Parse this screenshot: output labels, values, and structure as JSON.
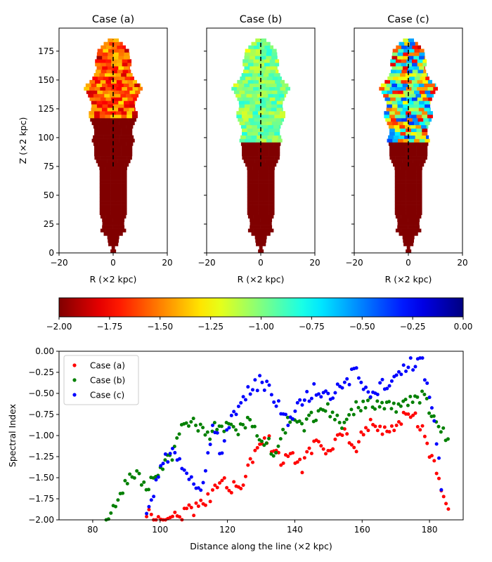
{
  "chart_data": [
    {
      "type": "heatmap",
      "panels": [
        {
          "title": "Case (a)",
          "upper_color_range": [
            -1.3,
            -1.85
          ],
          "threshold_z": 116
        },
        {
          "title": "Case (b)",
          "upper_color_range": [
            -0.8,
            -1.15
          ],
          "threshold_z": 96
        },
        {
          "title": "Case (c)",
          "upper_color_range": [
            -0.35,
            -1.8
          ],
          "threshold_z": 96
        }
      ],
      "shared": {
        "xlabel": "R (×2 kpc)",
        "ylabel": "Z (×2 kpc)",
        "xlim": [
          -20,
          20
        ],
        "ylim": [
          0,
          195
        ],
        "xticks": [
          "−20",
          "0",
          "20"
        ],
        "yticks": [
          "0",
          "25",
          "50",
          "75",
          "100",
          "125",
          "150",
          "175"
        ],
        "dashed_line": {
          "r": 0,
          "z_from": 75,
          "z_to": 185,
          "color": "#000000"
        },
        "lower_region_color": "#800000"
      },
      "profile_half_widths": [
        [
          0,
          2
        ],
        [
          3,
          0
        ],
        [
          8,
          2
        ],
        [
          13,
          2
        ],
        [
          16,
          3
        ],
        [
          18,
          5
        ],
        [
          23,
          4
        ],
        [
          28,
          4
        ],
        [
          33,
          5
        ],
        [
          38,
          5
        ],
        [
          43,
          5
        ],
        [
          48,
          5
        ],
        [
          53,
          5
        ],
        [
          58,
          5
        ],
        [
          63,
          5
        ],
        [
          68,
          5
        ],
        [
          73,
          5
        ],
        [
          78,
          6
        ],
        [
          83,
          7
        ],
        [
          88,
          7
        ],
        [
          93,
          7
        ],
        [
          98,
          8
        ],
        [
          103,
          7
        ],
        [
          108,
          7
        ],
        [
          113,
          8
        ],
        [
          118,
          9
        ],
        [
          122,
          9
        ],
        [
          125,
          8
        ],
        [
          130,
          8
        ],
        [
          135,
          9
        ],
        [
          140,
          10
        ],
        [
          143,
          11
        ],
        [
          146,
          10
        ],
        [
          150,
          8
        ],
        [
          155,
          7
        ],
        [
          160,
          6
        ],
        [
          165,
          7
        ],
        [
          170,
          6
        ],
        [
          175,
          6
        ],
        [
          180,
          4
        ],
        [
          183,
          3
        ],
        [
          186,
          1
        ]
      ]
    },
    {
      "type": "colorbar",
      "colormap": "jet_r",
      "range": [
        -2.0,
        0.0
      ],
      "tick_labels": [
        "−2.00",
        "−1.75",
        "−1.50",
        "−1.25",
        "−1.00",
        "−0.75",
        "−0.50",
        "−0.25",
        "0.00"
      ],
      "tick_values": [
        -2.0,
        -1.75,
        -1.5,
        -1.25,
        -1.0,
        -0.75,
        -0.5,
        -0.25,
        0.0
      ]
    },
    {
      "type": "scatter",
      "xlabel": "Distance along the line (×2 kpc)",
      "ylabel": "Spectral Index",
      "xlim": [
        70,
        190
      ],
      "ylim": [
        -2.0,
        0.0
      ],
      "xticks": [
        "80",
        "100",
        "120",
        "140",
        "160",
        "180"
      ],
      "xtick_values": [
        80,
        100,
        120,
        140,
        160,
        180
      ],
      "yticks": [
        "−2.00",
        "−1.75",
        "−1.50",
        "−1.25",
        "−1.00",
        "−0.75",
        "−0.50",
        "−0.25",
        "0.00"
      ],
      "ytick_values": [
        -2.0,
        -1.75,
        -1.5,
        -1.25,
        -1.0,
        -0.75,
        -0.5,
        -0.25,
        0.0
      ],
      "legend_placement": "top-left",
      "series": [
        {
          "name": "Case (a)",
          "color": "#ff0000",
          "keypoints": [
            [
              96,
              -1.9
            ],
            [
              100,
              -2.0
            ],
            [
              112,
              -1.85
            ],
            [
              118,
              -1.55
            ],
            [
              124,
              -1.65
            ],
            [
              128,
              -1.2
            ],
            [
              132,
              -1.05
            ],
            [
              136,
              -1.3
            ],
            [
              140,
              -1.25
            ],
            [
              142,
              -1.4
            ],
            [
              146,
              -1.05
            ],
            [
              150,
              -1.25
            ],
            [
              154,
              -0.95
            ],
            [
              158,
              -1.15
            ],
            [
              162,
              -0.85
            ],
            [
              166,
              -0.95
            ],
            [
              170,
              -0.85
            ],
            [
              174,
              -0.7
            ],
            [
              178,
              -0.9
            ],
            [
              180,
              -1.2
            ],
            [
              182,
              -1.45
            ],
            [
              184,
              -1.75
            ],
            [
              186,
              -2.0
            ]
          ]
        },
        {
          "name": "Case (b)",
          "color": "#008000",
          "keypoints": [
            [
              84,
              -1.98
            ],
            [
              92,
              -1.45
            ],
            [
              96,
              -1.6
            ],
            [
              100,
              -1.4
            ],
            [
              104,
              -1.2
            ],
            [
              106,
              -0.95
            ],
            [
              110,
              -0.8
            ],
            [
              114,
              -1.0
            ],
            [
              118,
              -0.85
            ],
            [
              122,
              -0.95
            ],
            [
              126,
              -0.85
            ],
            [
              130,
              -1.0
            ],
            [
              134,
              -1.2
            ],
            [
              138,
              -0.85
            ],
            [
              142,
              -0.9
            ],
            [
              146,
              -0.75
            ],
            [
              150,
              -0.7
            ],
            [
              154,
              -0.85
            ],
            [
              158,
              -0.65
            ],
            [
              162,
              -0.6
            ],
            [
              166,
              -0.65
            ],
            [
              170,
              -0.7
            ],
            [
              174,
              -0.6
            ],
            [
              178,
              -0.55
            ],
            [
              182,
              -0.8
            ],
            [
              186,
              -1.1
            ]
          ]
        },
        {
          "name": "Case (c)",
          "color": "#0000ff",
          "keypoints": [
            [
              96,
              -1.95
            ],
            [
              98,
              -1.7
            ],
            [
              100,
              -1.35
            ],
            [
              104,
              -1.2
            ],
            [
              108,
              -1.4
            ],
            [
              112,
              -1.7
            ],
            [
              116,
              -0.85
            ],
            [
              118,
              -1.2
            ],
            [
              122,
              -0.75
            ],
            [
              126,
              -0.5
            ],
            [
              130,
              -0.35
            ],
            [
              134,
              -0.55
            ],
            [
              138,
              -0.8
            ],
            [
              142,
              -0.6
            ],
            [
              146,
              -0.45
            ],
            [
              150,
              -0.55
            ],
            [
              154,
              -0.4
            ],
            [
              158,
              -0.25
            ],
            [
              162,
              -0.5
            ],
            [
              166,
              -0.4
            ],
            [
              170,
              -0.3
            ],
            [
              174,
              -0.15
            ],
            [
              178,
              -0.15
            ],
            [
              182,
              -1.0
            ],
            [
              184,
              -1.85
            ]
          ]
        }
      ]
    }
  ]
}
